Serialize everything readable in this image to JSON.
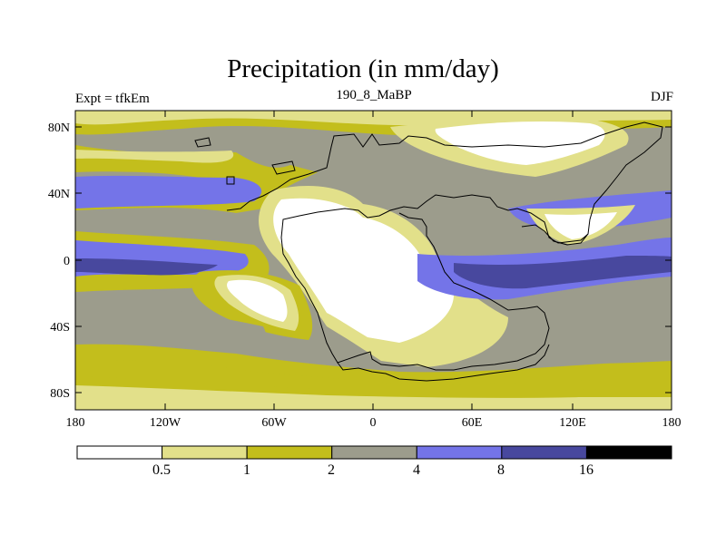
{
  "title": "Precipitation (in mm/day)",
  "left_string": "Expt = tfkEm",
  "center_string": "190_8_MaBP",
  "right_string": "DJF",
  "lat_ticks": [
    "80N",
    "40N",
    "0",
    "40S",
    "80S"
  ],
  "lon_ticks": [
    "180",
    "120W",
    "60W",
    "0",
    "60E",
    "120E",
    "180"
  ],
  "colorbar": {
    "labels": [
      "0.5",
      "1",
      "2",
      "4",
      "8",
      "16"
    ],
    "colors": [
      "#ffffff",
      "#e2e08a",
      "#c3be1c",
      "#9c9c8c",
      "#7474e8",
      "#48489e",
      "#000000"
    ]
  }
}
